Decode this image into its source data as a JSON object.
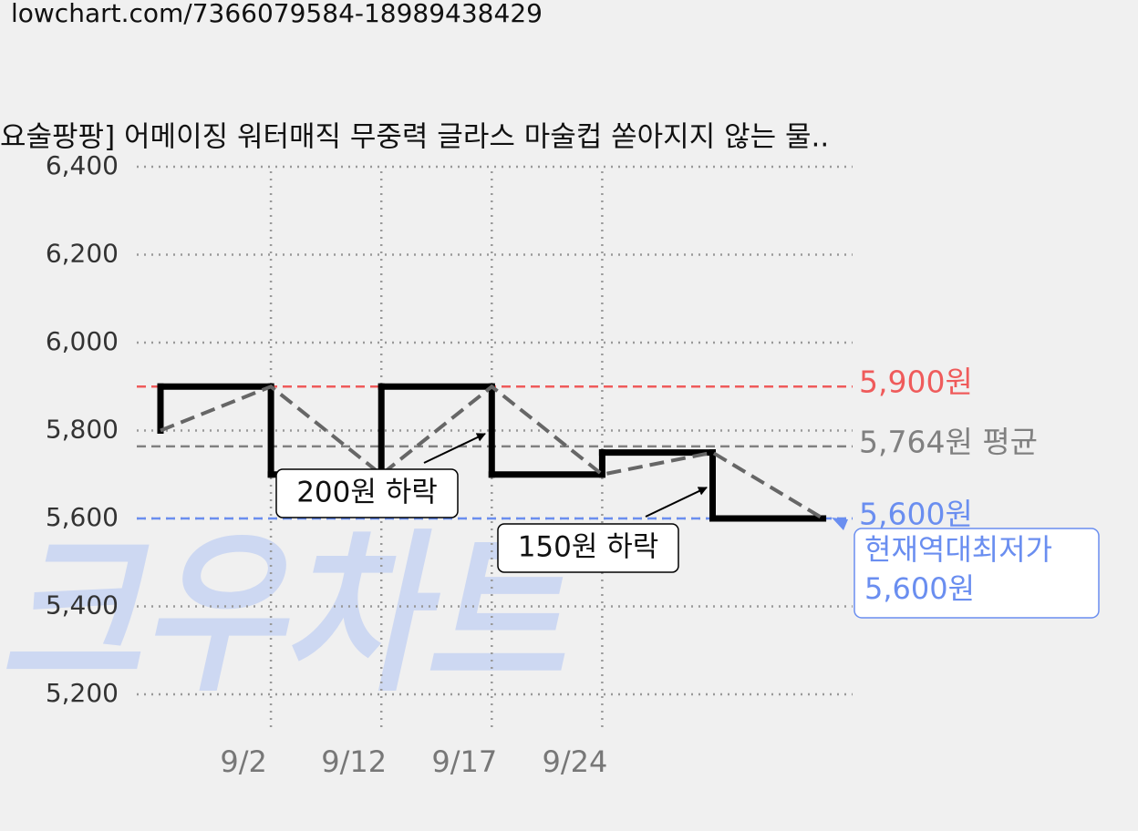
{
  "url": "lowchart.com/7366079584-18989438429",
  "chart_data": {
    "type": "step-line",
    "title": "요술팡팡] 어메이징 워터매직 무중력 글라스 마술컵 쏟아지지 않는 물..",
    "watermark": "크우차트",
    "categories": [
      null,
      "9/2",
      "9/12",
      "9/17",
      "9/24",
      null,
      null
    ],
    "values": [
      5800,
      5900,
      5700,
      5900,
      5700,
      5750,
      5600
    ],
    "color": "#000000",
    "trend_color": "#666666",
    "ylim": [
      5200,
      6400
    ],
    "yticks": [
      {
        "value": 5200,
        "label": "5,200"
      },
      {
        "value": 5400,
        "label": "5,400"
      },
      {
        "value": 5600,
        "label": "5,600"
      },
      {
        "value": 5800,
        "label": "5,800"
      },
      {
        "value": 6000,
        "label": "6,000"
      },
      {
        "value": 6200,
        "label": "6,200"
      },
      {
        "value": 6400,
        "label": "6,400"
      }
    ],
    "grid": true,
    "reference_lines": [
      {
        "value": 5900,
        "label": "5,900원",
        "color": "#ef5b5b"
      },
      {
        "value": 5764,
        "label": "5,764원 평균",
        "color": "#808080"
      },
      {
        "value": 5600,
        "label": "5,600원",
        "color": "#6a8ef0"
      }
    ],
    "annotations": [
      {
        "text": "200원 하락"
      },
      {
        "text": "150원 하락"
      }
    ],
    "callout": {
      "lines": [
        "현재역대최저가",
        "5,600원"
      ],
      "color": "#6a8ef0"
    }
  }
}
